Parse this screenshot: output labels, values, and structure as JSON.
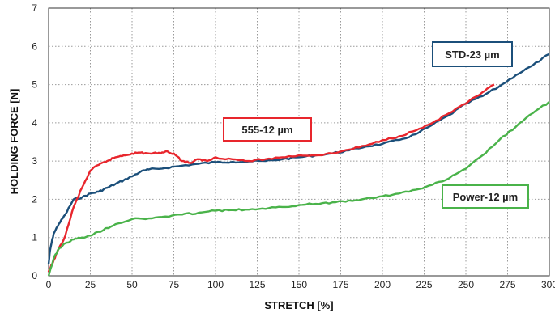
{
  "chart_data": {
    "type": "line",
    "xlabel": "STRETCH [%]",
    "ylabel": "HOLDING FORCE [N]",
    "xlim": [
      0,
      300
    ],
    "ylim": [
      0,
      7
    ],
    "x_ticks": [
      0,
      25,
      50,
      75,
      100,
      125,
      150,
      175,
      200,
      225,
      250,
      275,
      300
    ],
    "y_ticks": [
      0,
      1,
      2,
      3,
      4,
      5,
      6,
      7
    ],
    "grid": true,
    "series": [
      {
        "name": "STD-23 µm",
        "color": "#1b4f7a",
        "x": [
          0,
          1,
          3,
          6,
          10,
          15,
          20,
          25,
          30,
          35,
          40,
          45,
          50,
          55,
          60,
          70,
          80,
          90,
          100,
          110,
          120,
          130,
          140,
          150,
          160,
          170,
          180,
          190,
          200,
          210,
          220,
          230,
          240,
          250,
          260,
          270,
          280,
          290,
          300
        ],
        "y": [
          0.3,
          0.7,
          1.1,
          1.35,
          1.6,
          2.0,
          2.05,
          2.15,
          2.2,
          2.3,
          2.4,
          2.5,
          2.6,
          2.72,
          2.78,
          2.82,
          2.88,
          2.93,
          2.97,
          2.98,
          2.99,
          3.0,
          3.05,
          3.1,
          3.15,
          3.2,
          3.28,
          3.38,
          3.45,
          3.55,
          3.7,
          3.95,
          4.2,
          4.5,
          4.7,
          4.95,
          5.25,
          5.5,
          5.8
        ]
      },
      {
        "name": "555-12 µm",
        "color": "#e8262d",
        "x": [
          0,
          2,
          5,
          10,
          15,
          20,
          25,
          30,
          35,
          40,
          45,
          50,
          55,
          60,
          65,
          70,
          75,
          80,
          85,
          90,
          95,
          100,
          110,
          120,
          130,
          140,
          150,
          160,
          170,
          180,
          190,
          200,
          210,
          220,
          230,
          240,
          250,
          260,
          267
        ],
        "y": [
          0.1,
          0.3,
          0.6,
          1.05,
          1.8,
          2.3,
          2.75,
          2.9,
          3.0,
          3.1,
          3.15,
          3.2,
          3.22,
          3.2,
          3.2,
          3.25,
          3.2,
          3.0,
          2.95,
          3.05,
          3.0,
          3.1,
          3.05,
          3.0,
          3.05,
          3.1,
          3.15,
          3.15,
          3.2,
          3.3,
          3.4,
          3.55,
          3.65,
          3.8,
          4.0,
          4.25,
          4.5,
          4.8,
          5.0
        ]
      },
      {
        "name": "Power-12 µm",
        "color": "#4ab34a",
        "x": [
          0,
          3,
          6,
          10,
          15,
          20,
          25,
          30,
          35,
          40,
          50,
          60,
          70,
          80,
          90,
          100,
          110,
          120,
          130,
          140,
          150,
          160,
          170,
          180,
          190,
          200,
          210,
          220,
          230,
          240,
          250,
          260,
          270,
          280,
          290,
          300
        ],
        "y": [
          0.0,
          0.45,
          0.7,
          0.85,
          0.95,
          1.0,
          1.05,
          1.15,
          1.25,
          1.35,
          1.48,
          1.5,
          1.55,
          1.6,
          1.65,
          1.7,
          1.72,
          1.73,
          1.75,
          1.8,
          1.85,
          1.88,
          1.92,
          1.97,
          2.02,
          2.08,
          2.15,
          2.25,
          2.38,
          2.55,
          2.8,
          3.15,
          3.55,
          3.9,
          4.25,
          4.55
        ]
      }
    ],
    "annotations": [
      {
        "text": "STD-23 µm",
        "color": "#1b4f7a"
      },
      {
        "text": "555-12 µm",
        "color": "#e8262d"
      },
      {
        "text": "Power-12 µm",
        "color": "#4ab34a"
      }
    ]
  }
}
